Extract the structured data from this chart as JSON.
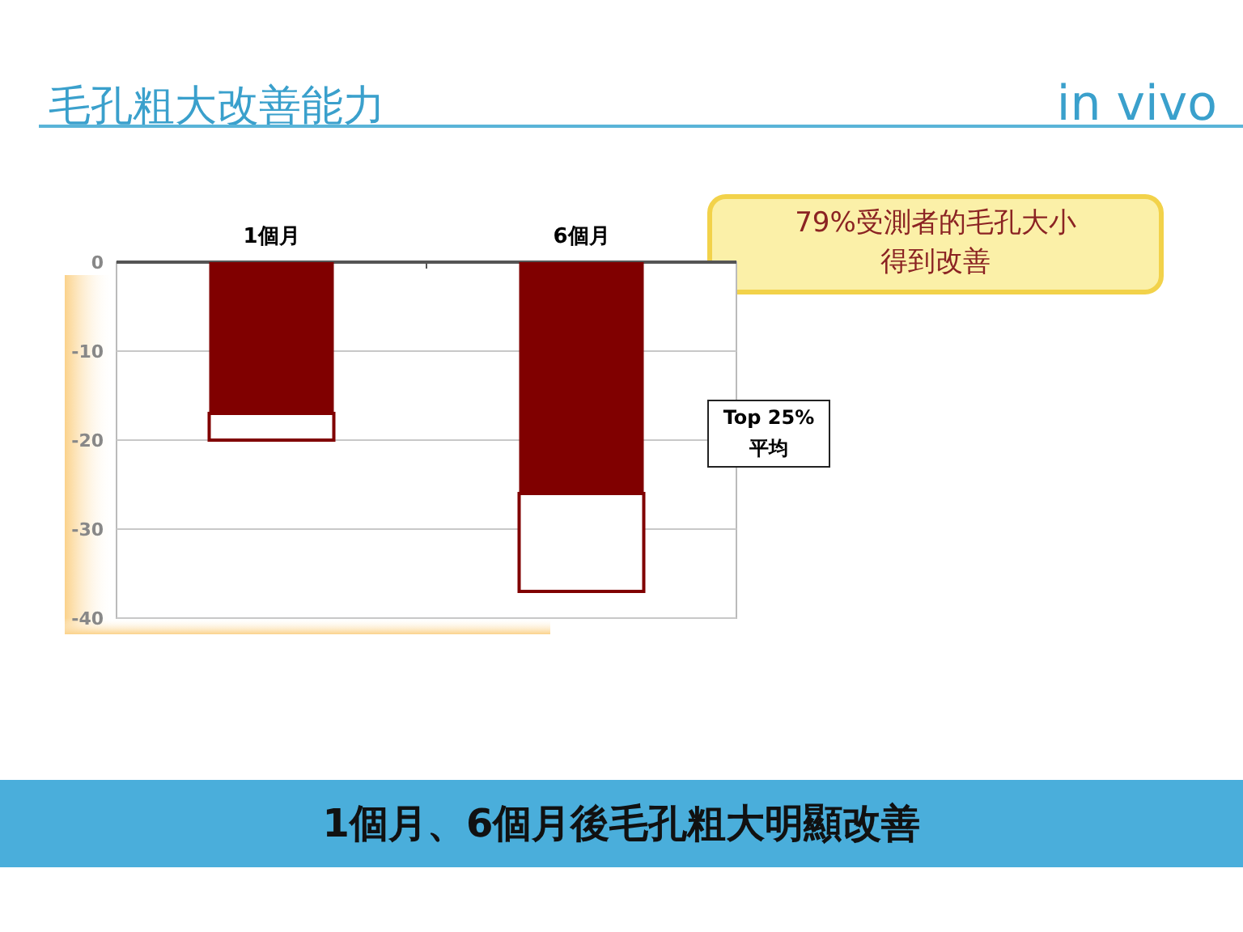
{
  "chart_data": {
    "type": "bar",
    "title": "毛孔粗大改善能力",
    "subtitle": "in vivo",
    "categories": [
      "1個月",
      "6個月"
    ],
    "series": [
      {
        "color": "#800000",
        "values": [
          -17,
          -26
        ]
      },
      {
        "color": "#ffffff",
        "values": [
          -3,
          -11
        ]
      }
    ],
    "stacked": true,
    "ylim": [
      -40,
      0
    ],
    "yticks": [
      0,
      -10,
      -20,
      -30,
      -40
    ],
    "grid": "y",
    "annotations": [
      "79%受測者的毛孔大小得到改善",
      "Top 25% 平均",
      "1個月、6個月後毛孔粗大明顯改善"
    ]
  }
}
